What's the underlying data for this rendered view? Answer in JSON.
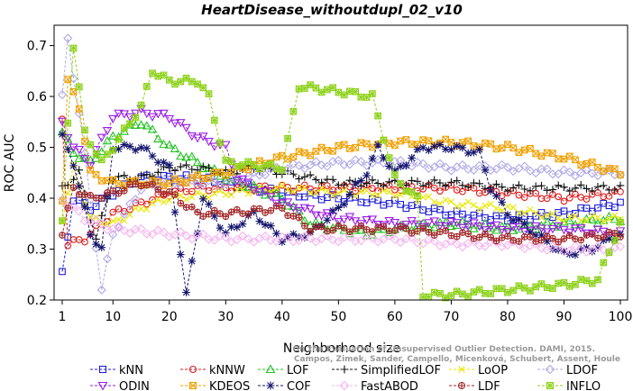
{
  "chart_data": {
    "type": "line",
    "title": "HeartDisease_withoutdupl_02_v10",
    "xlabel": "Neighborhood size",
    "ylabel": "ROC AUC",
    "xlim": [
      1,
      100
    ],
    "ylim": [
      0.2,
      0.74
    ],
    "xticks": [
      1,
      10,
      20,
      30,
      40,
      50,
      60,
      70,
      80,
      90,
      100
    ],
    "yticks": [
      0.2,
      0.3,
      0.4,
      0.5,
      0.6,
      0.7
    ],
    "grid": false,
    "legend_position": "bottom",
    "credit": "Campos, Zimek, Sander, Campello, Micenková, Schubert, Assent, Houle: On the Evaluation of Unsupervised Outlier Detection. DAMI, 2015.",
    "credit_lines": [
      "Campos, Zimek, Sander, Campello, Micenková, Schubert, Assent, Houle",
      "On the Evaluation of Unsupervised Outlier Detection. DAMI, 2015."
    ],
    "series": [
      {
        "name": "kNN",
        "color": "#1f1fd6",
        "marker": "square",
        "anchors": [
          [
            1,
            0.25
          ],
          [
            3,
            0.4
          ],
          [
            6,
            0.38
          ],
          [
            10,
            0.41
          ],
          [
            15,
            0.44
          ],
          [
            20,
            0.44
          ],
          [
            25,
            0.44
          ],
          [
            30,
            0.43
          ],
          [
            40,
            0.41
          ],
          [
            50,
            0.4
          ],
          [
            60,
            0.39
          ],
          [
            70,
            0.37
          ],
          [
            80,
            0.36
          ],
          [
            90,
            0.37
          ],
          [
            100,
            0.39
          ]
        ]
      },
      {
        "name": "kNNW",
        "color": "#e01a1a",
        "marker": "circle",
        "anchors": [
          [
            1,
            0.56
          ],
          [
            2,
            0.31
          ],
          [
            5,
            0.32
          ],
          [
            10,
            0.37
          ],
          [
            15,
            0.39
          ],
          [
            20,
            0.41
          ],
          [
            25,
            0.42
          ],
          [
            30,
            0.42
          ],
          [
            40,
            0.42
          ],
          [
            50,
            0.42
          ],
          [
            60,
            0.42
          ],
          [
            70,
            0.42
          ],
          [
            80,
            0.41
          ],
          [
            90,
            0.4
          ],
          [
            100,
            0.41
          ]
        ]
      },
      {
        "name": "LOF",
        "color": "#22c022",
        "marker": "triangle-up",
        "anchors": [
          [
            1,
            0.53
          ],
          [
            3,
            0.49
          ],
          [
            6,
            0.47
          ],
          [
            10,
            0.52
          ],
          [
            15,
            0.55
          ],
          [
            20,
            0.5
          ],
          [
            25,
            0.47
          ],
          [
            30,
            0.44
          ],
          [
            35,
            0.42
          ],
          [
            40,
            0.4
          ],
          [
            45,
            0.35
          ],
          [
            50,
            0.34
          ],
          [
            55,
            0.33
          ],
          [
            60,
            0.34
          ],
          [
            70,
            0.35
          ],
          [
            80,
            0.34
          ],
          [
            90,
            0.35
          ],
          [
            100,
            0.36
          ]
        ]
      },
      {
        "name": "SimplifiedLOF",
        "color": "#111111",
        "marker": "plus",
        "anchors": [
          [
            1,
            0.42
          ],
          [
            4,
            0.45
          ],
          [
            7,
            0.32
          ],
          [
            10,
            0.44
          ],
          [
            15,
            0.44
          ],
          [
            20,
            0.46
          ],
          [
            25,
            0.46
          ],
          [
            30,
            0.45
          ],
          [
            35,
            0.46
          ],
          [
            40,
            0.45
          ],
          [
            45,
            0.44
          ],
          [
            50,
            0.43
          ],
          [
            60,
            0.43
          ],
          [
            70,
            0.43
          ],
          [
            80,
            0.42
          ],
          [
            90,
            0.42
          ],
          [
            100,
            0.42
          ]
        ]
      },
      {
        "name": "LoOP",
        "color": "#e8e800",
        "marker": "x",
        "anchors": [
          [
            1,
            0.36
          ],
          [
            3,
            0.46
          ],
          [
            6,
            0.36
          ],
          [
            10,
            0.35
          ],
          [
            15,
            0.38
          ],
          [
            20,
            0.4
          ],
          [
            30,
            0.41
          ],
          [
            40,
            0.42
          ],
          [
            50,
            0.41
          ],
          [
            60,
            0.41
          ],
          [
            70,
            0.39
          ],
          [
            80,
            0.38
          ],
          [
            90,
            0.36
          ],
          [
            100,
            0.36
          ]
        ]
      },
      {
        "name": "LDOF",
        "color": "#b0a8e6",
        "marker": "diamond",
        "anchors": [
          [
            1,
            0.6
          ],
          [
            2,
            0.71
          ],
          [
            4,
            0.57
          ],
          [
            8,
            0.22
          ],
          [
            10,
            0.33
          ],
          [
            15,
            0.42
          ],
          [
            20,
            0.43
          ],
          [
            30,
            0.43
          ],
          [
            40,
            0.46
          ],
          [
            50,
            0.47
          ],
          [
            60,
            0.47
          ],
          [
            70,
            0.46
          ],
          [
            80,
            0.46
          ],
          [
            90,
            0.45
          ],
          [
            100,
            0.45
          ]
        ]
      },
      {
        "name": "ODIN",
        "color": "#9a1ee6",
        "marker": "triangle-down",
        "anchors": [
          [
            1,
            0.55
          ],
          [
            3,
            0.5
          ],
          [
            6,
            0.47
          ],
          [
            10,
            0.56
          ],
          [
            15,
            0.57
          ],
          [
            20,
            0.56
          ],
          [
            25,
            0.52
          ],
          [
            30,
            0.5
          ],
          [
            32,
            0.44
          ],
          [
            40,
            0.39
          ],
          [
            50,
            0.36
          ],
          [
            60,
            0.35
          ],
          [
            70,
            0.35
          ],
          [
            80,
            0.34
          ],
          [
            90,
            0.34
          ],
          [
            100,
            0.33
          ]
        ]
      },
      {
        "name": "KDEOS",
        "color": "#f0a000",
        "marker": "square-x",
        "anchors": [
          [
            1,
            0.4
          ],
          [
            2,
            0.63
          ],
          [
            4,
            0.58
          ],
          [
            6,
            0.45
          ],
          [
            10,
            0.43
          ],
          [
            20,
            0.43
          ],
          [
            30,
            0.45
          ],
          [
            40,
            0.48
          ],
          [
            50,
            0.5
          ],
          [
            60,
            0.51
          ],
          [
            70,
            0.51
          ],
          [
            80,
            0.5
          ],
          [
            90,
            0.48
          ],
          [
            100,
            0.45
          ]
        ]
      },
      {
        "name": "COF",
        "color": "#14146e",
        "marker": "star",
        "anchors": [
          [
            1,
            0.52
          ],
          [
            3,
            0.47
          ],
          [
            6,
            0.33
          ],
          [
            8,
            0.3
          ],
          [
            10,
            0.5
          ],
          [
            15,
            0.5
          ],
          [
            20,
            0.46
          ],
          [
            23,
            0.21
          ],
          [
            26,
            0.4
          ],
          [
            30,
            0.33
          ],
          [
            35,
            0.37
          ],
          [
            40,
            0.32
          ],
          [
            45,
            0.33
          ],
          [
            50,
            0.38
          ],
          [
            55,
            0.45
          ],
          [
            57,
            0.5
          ],
          [
            60,
            0.45
          ],
          [
            65,
            0.5
          ],
          [
            70,
            0.5
          ],
          [
            75,
            0.49
          ],
          [
            77,
            0.42
          ],
          [
            80,
            0.37
          ],
          [
            85,
            0.33
          ],
          [
            90,
            0.29
          ],
          [
            95,
            0.3
          ],
          [
            100,
            0.33
          ]
        ]
      },
      {
        "name": "FastABOD",
        "color": "#f5b3f0",
        "marker": "diamond",
        "anchors": [
          [
            1,
            0.4
          ],
          [
            5,
            0.36
          ],
          [
            10,
            0.34
          ],
          [
            20,
            0.33
          ],
          [
            30,
            0.32
          ],
          [
            40,
            0.32
          ],
          [
            50,
            0.32
          ],
          [
            60,
            0.32
          ],
          [
            70,
            0.31
          ],
          [
            80,
            0.31
          ],
          [
            90,
            0.3
          ],
          [
            100,
            0.3
          ]
        ]
      },
      {
        "name": "LDF",
        "color": "#a02424",
        "marker": "circle-plus",
        "anchors": [
          [
            1,
            0.33
          ],
          [
            3,
            0.42
          ],
          [
            6,
            0.4
          ],
          [
            10,
            0.41
          ],
          [
            15,
            0.43
          ],
          [
            20,
            0.41
          ],
          [
            25,
            0.37
          ],
          [
            30,
            0.37
          ],
          [
            40,
            0.38
          ],
          [
            45,
            0.34
          ],
          [
            50,
            0.34
          ],
          [
            60,
            0.34
          ],
          [
            70,
            0.33
          ],
          [
            80,
            0.32
          ],
          [
            90,
            0.32
          ],
          [
            100,
            0.33
          ]
        ]
      },
      {
        "name": "INFLO",
        "color": "#8ed21c",
        "marker": "square-star",
        "anchors": [
          [
            1,
            0.35
          ],
          [
            2,
            0.55
          ],
          [
            3,
            0.7
          ],
          [
            5,
            0.53
          ],
          [
            8,
            0.47
          ],
          [
            10,
            0.5
          ],
          [
            15,
            0.58
          ],
          [
            17,
            0.65
          ],
          [
            20,
            0.63
          ],
          [
            25,
            0.63
          ],
          [
            27,
            0.6
          ],
          [
            30,
            0.47
          ],
          [
            40,
            0.46
          ],
          [
            43,
            0.62
          ],
          [
            50,
            0.61
          ],
          [
            56,
            0.6
          ],
          [
            60,
            0.44
          ],
          [
            64,
            0.4
          ],
          [
            65,
            0.21
          ],
          [
            70,
            0.21
          ],
          [
            80,
            0.22
          ],
          [
            90,
            0.23
          ],
          [
            96,
            0.24
          ],
          [
            100,
            0.35
          ]
        ]
      }
    ]
  }
}
